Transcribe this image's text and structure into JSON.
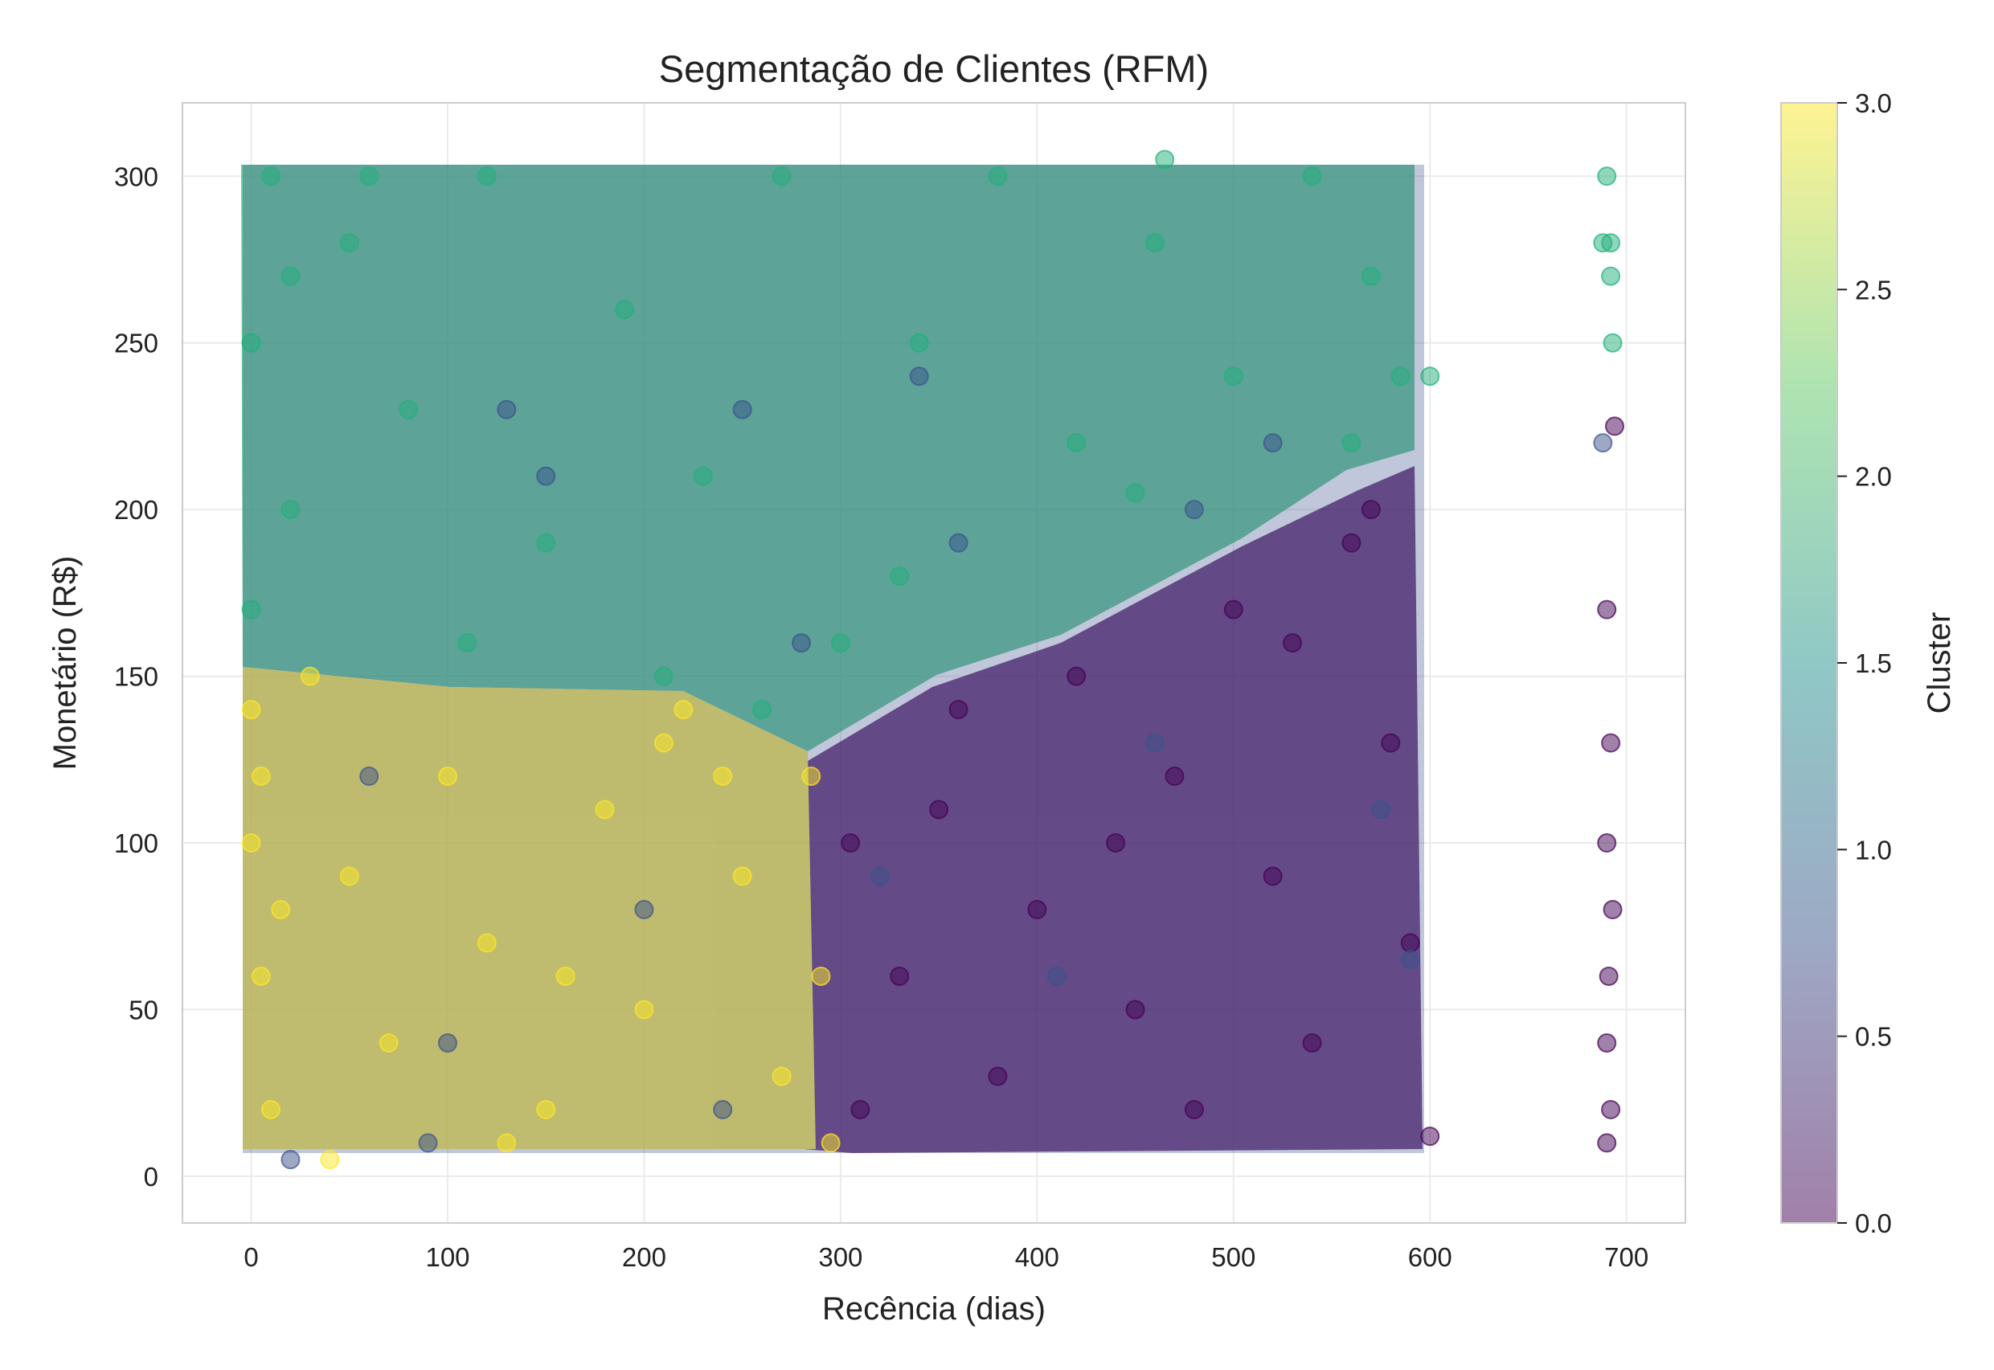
{
  "chart_data": {
    "type": "scatter",
    "title": "Segmentação de Clientes (RFM)",
    "xlabel": "Recência (dias)",
    "ylabel": "Monetário (R$)",
    "xlim": [
      -35,
      730
    ],
    "ylim": [
      -14,
      322
    ],
    "xticks": [
      0,
      100,
      200,
      300,
      400,
      500,
      600,
      700
    ],
    "yticks": [
      0,
      50,
      100,
      150,
      200,
      250,
      300
    ],
    "grid": true,
    "marker_alpha": 0.5,
    "colorbar": {
      "label": "Cluster",
      "range": [
        0.0,
        3.0
      ],
      "ticks": [
        "0.0",
        "0.5",
        "1.0",
        "1.5",
        "2.0",
        "2.5",
        "3.0"
      ],
      "colormap": "viridis",
      "colors": [
        "#440154",
        "#3b528b",
        "#21918c",
        "#5ec962",
        "#fde725"
      ]
    },
    "series": [
      {
        "cluster": 0,
        "color": "#440154",
        "points": [
          [
            310,
            20
          ],
          [
            330,
            60
          ],
          [
            350,
            110
          ],
          [
            380,
            30
          ],
          [
            400,
            80
          ],
          [
            420,
            150
          ],
          [
            450,
            50
          ],
          [
            470,
            120
          ],
          [
            500,
            170
          ],
          [
            520,
            90
          ],
          [
            540,
            40
          ],
          [
            560,
            190
          ],
          [
            580,
            130
          ],
          [
            590,
            70
          ],
          [
            600,
            12
          ],
          [
            360,
            140
          ],
          [
            440,
            100
          ],
          [
            480,
            20
          ],
          [
            530,
            160
          ],
          [
            570,
            200
          ],
          [
            690,
            170
          ],
          [
            692,
            130
          ],
          [
            690,
            100
          ],
          [
            693,
            80
          ],
          [
            691,
            60
          ],
          [
            690,
            40
          ],
          [
            692,
            20
          ],
          [
            694,
            225
          ],
          [
            690,
            10
          ],
          [
            305,
            100
          ]
        ]
      },
      {
        "cluster": 1,
        "color": "#3b528b",
        "points": [
          [
            20,
            5
          ],
          [
            60,
            120
          ],
          [
            100,
            40
          ],
          [
            150,
            210
          ],
          [
            200,
            80
          ],
          [
            250,
            230
          ],
          [
            280,
            160
          ],
          [
            320,
            90
          ],
          [
            360,
            190
          ],
          [
            410,
            60
          ],
          [
            460,
            130
          ],
          [
            520,
            220
          ],
          [
            575,
            110
          ],
          [
            590,
            65
          ],
          [
            130,
            230
          ],
          [
            90,
            10
          ],
          [
            240,
            20
          ],
          [
            340,
            240
          ],
          [
            480,
            200
          ],
          [
            688,
            220
          ]
        ]
      },
      {
        "cluster": 2,
        "color": "#21b07a",
        "points": [
          [
            0,
            250
          ],
          [
            0,
            170
          ],
          [
            10,
            300
          ],
          [
            50,
            280
          ],
          [
            80,
            230
          ],
          [
            120,
            300
          ],
          [
            150,
            190
          ],
          [
            190,
            260
          ],
          [
            230,
            210
          ],
          [
            270,
            300
          ],
          [
            300,
            160
          ],
          [
            340,
            250
          ],
          [
            380,
            300
          ],
          [
            420,
            220
          ],
          [
            460,
            280
          ],
          [
            500,
            240
          ],
          [
            540,
            300
          ],
          [
            570,
            270
          ],
          [
            585,
            240
          ],
          [
            600,
            240
          ],
          [
            20,
            200
          ],
          [
            110,
            160
          ],
          [
            210,
            150
          ],
          [
            330,
            180
          ],
          [
            450,
            205
          ],
          [
            560,
            220
          ],
          [
            690,
            300
          ],
          [
            692,
            280
          ],
          [
            692,
            270
          ],
          [
            693,
            250
          ],
          [
            688,
            280
          ],
          [
            20,
            270
          ],
          [
            60,
            300
          ],
          [
            465,
            305
          ],
          [
            260,
            140
          ]
        ]
      },
      {
        "cluster": 3,
        "color": "#fde725",
        "points": [
          [
            0,
            100
          ],
          [
            0,
            140
          ],
          [
            5,
            60
          ],
          [
            10,
            20
          ],
          [
            30,
            150
          ],
          [
            50,
            90
          ],
          [
            70,
            40
          ],
          [
            100,
            120
          ],
          [
            120,
            70
          ],
          [
            150,
            20
          ],
          [
            180,
            110
          ],
          [
            200,
            50
          ],
          [
            220,
            140
          ],
          [
            250,
            90
          ],
          [
            270,
            30
          ],
          [
            290,
            60
          ],
          [
            295,
            10
          ],
          [
            40,
            5
          ],
          [
            130,
            10
          ],
          [
            210,
            130
          ],
          [
            5,
            120
          ],
          [
            15,
            80
          ],
          [
            160,
            60
          ],
          [
            240,
            120
          ],
          [
            285,
            120
          ]
        ]
      }
    ]
  }
}
